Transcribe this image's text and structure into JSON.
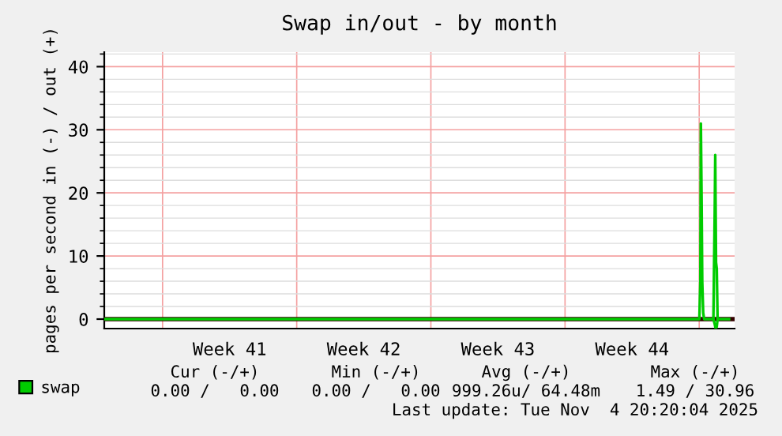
{
  "chart_data": {
    "type": "line",
    "title": "Swap in/out - by month",
    "ylabel": "pages per second in (-) / out (+)",
    "xlim": [
      "2025-10-02T23:00",
      "2025-11-04T20:20"
    ],
    "ylim": [
      -1.5,
      42.3
    ],
    "yticks": [
      0,
      10,
      20,
      30,
      40
    ],
    "xticks": [
      {
        "value": "2025-10-06T00:00",
        "label": null
      },
      {
        "value": "2025-10-09T12:00",
        "label": "Week 41"
      },
      {
        "value": "2025-10-13T00:00",
        "label": null
      },
      {
        "value": "2025-10-16T12:00",
        "label": "Week 42"
      },
      {
        "value": "2025-10-20T00:00",
        "label": null
      },
      {
        "value": "2025-10-23T12:00",
        "label": "Week 43"
      },
      {
        "value": "2025-10-27T00:00",
        "label": null
      },
      {
        "value": "2025-10-30T12:00",
        "label": "Week 44"
      },
      {
        "value": "2025-11-03T00:00",
        "label": null
      }
    ],
    "grid": true,
    "legend": "bottom left",
    "series": [
      {
        "name": "swap",
        "color": "#00cc00",
        "x": [
          "2025-10-02T23:00",
          "2025-11-03T00:10",
          "2025-11-03T01:25",
          "2025-11-03T02:05",
          "2025-11-03T03:05",
          "2025-11-03T03:50",
          "2025-11-03T05:00",
          "2025-11-03T06:10",
          "2025-11-03T17:45",
          "2025-11-03T18:10",
          "2025-11-03T19:25",
          "2025-11-03T20:05",
          "2025-11-03T21:05",
          "2025-11-03T22:00",
          "2025-11-03T23:00",
          "2025-11-04T13:25"
        ],
        "values": [
          0,
          0,
          6,
          31,
          18,
          6,
          1,
          0,
          0,
          4,
          17,
          26,
          9,
          8,
          0,
          0
        ]
      },
      {
        "color": "#00cc00",
        "x": [
          "2025-11-03T17:45",
          "2025-11-03T19:25",
          "2025-11-03T20:35",
          "2025-11-03T22:00",
          "2025-11-03T23:00"
        ],
        "values": [
          0,
          -0.8,
          -1.5,
          -1.2,
          0
        ]
      }
    ],
    "ref_lines": [
      {
        "axis": "y",
        "value": 0,
        "color": "#330000"
      }
    ],
    "annotations": [
      "Cur (-/+)",
      "Min (-/+)",
      "Avg (-/+)",
      "Max (-/+)",
      "0.00 /   0.00",
      "0.00 /   0.00",
      "999.26u/ 64.48m",
      "1.49 / 30.96",
      "Last update: Tue Nov  4 20:20:04 2025"
    ]
  }
}
